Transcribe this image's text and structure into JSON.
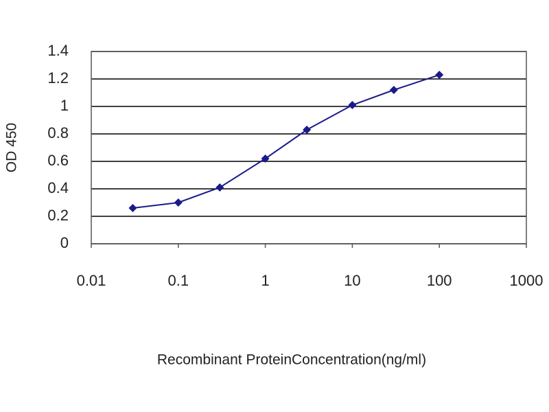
{
  "chart_data": {
    "type": "line",
    "x_label": "Recombinant ProteinConcentration(ng/ml)",
    "y_label": "OD 450",
    "x": [
      0.03,
      0.1,
      0.3,
      1,
      3,
      10,
      30,
      100
    ],
    "series": [
      {
        "color": "#1a1a8c",
        "values": [
          0.26,
          0.3,
          0.41,
          0.62,
          0.83,
          1.01,
          1.12,
          1.23
        ]
      }
    ],
    "xscale": "log",
    "xlim": [
      0.01,
      1000
    ],
    "xticks": [
      0.01,
      0.1,
      1,
      10,
      100,
      1000
    ],
    "ylim": [
      0,
      1.4
    ],
    "yticks": [
      0,
      0.2,
      0.4,
      0.6,
      0.8,
      1,
      1.2,
      1.4
    ],
    "grid": true
  }
}
